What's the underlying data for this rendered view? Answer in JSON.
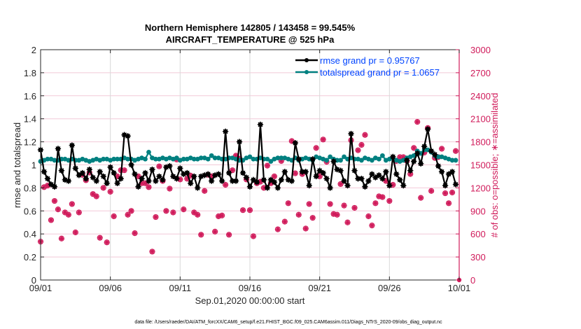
{
  "chart_data": {
    "type": "line",
    "title": "Northern Hemisphere 142805 / 143458 = 99.545%",
    "subtitle": "AIRCRAFT_TEMPERATURE @ 525 hPa",
    "xlabel": "Sep.01,2020 00:00:00 start",
    "ylabel": "rmse and totalspread",
    "ylabel_right": "# of obs: o=possible; ∗=assimilated",
    "x_tick_labels": [
      "09/01",
      "09/06",
      "09/11",
      "09/16",
      "09/21",
      "09/26",
      "10/01"
    ],
    "x_range_days": [
      0,
      30
    ],
    "x_step_days": 0.25,
    "ylim": [
      0,
      2
    ],
    "y_ticks": [
      "0",
      "0.2",
      "0.4",
      "0.6",
      "0.8",
      "1",
      "1.2",
      "1.4",
      "1.6",
      "1.8",
      "2"
    ],
    "ylim_right": [
      0,
      3000
    ],
    "y_ticks_right": [
      "0",
      "300",
      "600",
      "900",
      "1200",
      "1500",
      "1800",
      "2100",
      "2400",
      "2700",
      "3000"
    ],
    "grid": "vertical at x ticks, horizontal at y ticks",
    "legend_position": "top-right",
    "footer": "data file: /Users/raeder/DAI/ATM_forcXX/CAM6_setup/f.e21.FHIST_BGC.f09_025.CAM6assim.011/Diags_NTrS_2020-09/obs_diag_output.nc",
    "series": [
      {
        "name": "rmse grand pr = 0.95767",
        "color": "#000000",
        "axis": "left",
        "values": [
          1.13,
          0.94,
          0.88,
          0.83,
          0.81,
          1.14,
          0.95,
          0.87,
          0.86,
          1.17,
          0.97,
          0.91,
          0.93,
          0.88,
          0.96,
          0.89,
          0.86,
          0.94,
          0.9,
          0.84,
          0.98,
          0.93,
          0.84,
          0.88,
          1.26,
          1.25,
          1.0,
          0.92,
          0.81,
          0.88,
          0.93,
          0.86,
          0.96,
          0.86,
          0.9,
          0.87,
          0.98,
          0.99,
          0.9,
          0.88,
          0.97,
          0.92,
          0.93,
          0.84,
          0.9,
          0.8,
          0.9,
          0.91,
          0.92,
          0.86,
          0.91,
          0.92,
          0.86,
          1.29,
          0.93,
          0.86,
          0.86,
          1.2,
          0.93,
          0.89,
          0.81,
          0.87,
          0.85,
          1.35,
          0.87,
          0.8,
          0.87,
          0.85,
          0.8,
          0.87,
          0.94,
          0.87,
          0.86,
          1.19,
          1.05,
          0.94,
          0.94,
          0.82,
          1.05,
          0.9,
          0.95,
          0.93,
          0.88,
          0.8,
          1.03,
          0.96,
          0.95,
          0.86,
          0.82,
          1.27,
          0.95,
          0.88,
          0.88,
          0.81,
          0.86,
          0.92,
          0.89,
          0.91,
          0.88,
          0.94,
          0.82,
          1.07,
          0.92,
          0.87,
          0.82,
          1.04,
          0.95,
          1.03,
          1.1,
          1.01,
          1.16,
          1.31,
          1.12,
          1.09,
          0.99,
          0.94,
          0.82,
          0.92,
          0.94,
          0.83
        ],
        "note": "values approximate, read from the plot"
      },
      {
        "name": "totalspread grand pr = 1.0657",
        "color": "#008080",
        "axis": "left",
        "values": [
          1.03,
          1.04,
          1.05,
          1.05,
          1.04,
          1.04,
          1.05,
          1.05,
          1.04,
          1.05,
          1.04,
          1.04,
          1.05,
          1.04,
          1.03,
          1.04,
          1.05,
          1.04,
          1.05,
          1.05,
          1.04,
          1.05,
          1.05,
          1.05,
          1.06,
          1.05,
          1.05,
          1.04,
          1.05,
          1.06,
          1.05,
          1.11,
          1.06,
          1.05,
          1.05,
          1.06,
          1.05,
          1.06,
          1.05,
          1.06,
          1.04,
          1.05,
          1.05,
          1.06,
          1.05,
          1.05,
          1.06,
          1.06,
          1.05,
          1.08,
          1.06,
          1.06,
          1.05,
          1.05,
          1.06,
          1.06,
          1.05,
          1.04,
          1.04,
          1.06,
          1.07,
          1.05,
          1.05,
          1.06,
          1.05,
          1.05,
          1.03,
          1.05,
          1.06,
          1.06,
          1.06,
          1.05,
          1.04,
          1.06,
          1.04,
          1.05,
          1.06,
          1.05,
          1.04,
          1.07,
          1.06,
          1.05,
          1.04,
          1.07,
          1.05,
          1.04,
          1.04,
          1.07,
          1.05,
          1.06,
          1.05,
          1.05,
          1.04,
          1.06,
          1.05,
          1.04,
          1.06,
          1.05,
          1.08,
          1.04,
          1.05,
          1.06,
          1.04,
          1.03,
          1.04,
          1.06,
          1.07,
          1.08,
          1.12,
          1.1,
          1.13,
          1.13,
          1.11,
          1.08,
          1.07,
          1.07,
          1.06,
          1.05,
          1.04,
          1.04
        ],
        "note": "values approximate, read from the plot"
      },
      {
        "name": "# obs possible (o) / assimilated (*)",
        "color": "#d01a5a",
        "axis": "right",
        "values": [
          500,
          1210,
          1230,
          780,
          1030,
          920,
          540,
          880,
          850,
          990,
          620,
          880,
          1370,
          1300,
          1400,
          1120,
          1090,
          550,
          1200,
          490,
          1150,
          830,
          1350,
          1430,
          1430,
          850,
          900,
          610,
          1350,
          1260,
          1260,
          1210,
          370,
          820,
          1480,
          1290,
          900,
          1190,
          880,
          1570,
          1310,
          920,
          1320,
          1360,
          880,
          850,
          590,
          1160,
          1370,
          1350,
          630,
          830,
          840,
          1240,
          590,
          1430,
          1620,
          1580,
          910,
          1310,
          910,
          570,
          1260,
          1280,
          1200,
          1490,
          1260,
          1350,
          660,
          1550,
          760,
          1000,
          1810,
          1390,
          850,
          1380,
          670,
          990,
          810,
          1720,
          1350,
          1830,
          1540,
          990,
          860,
          850,
          1250,
          970,
          750,
          1820,
          940,
          1690,
          1760,
          1890,
          830,
          710,
          1000,
          1090,
          1080,
          1290,
          1030,
          1240,
          1550,
          1600,
          1600,
          1550,
          1380,
          1720,
          2060,
          1070,
          1660,
          1980,
          1160,
          1590,
          1600,
          1710,
          1130,
          1000,
          1140,
          1680
        ],
        "note": "values approximate, read from the plot"
      }
    ]
  }
}
